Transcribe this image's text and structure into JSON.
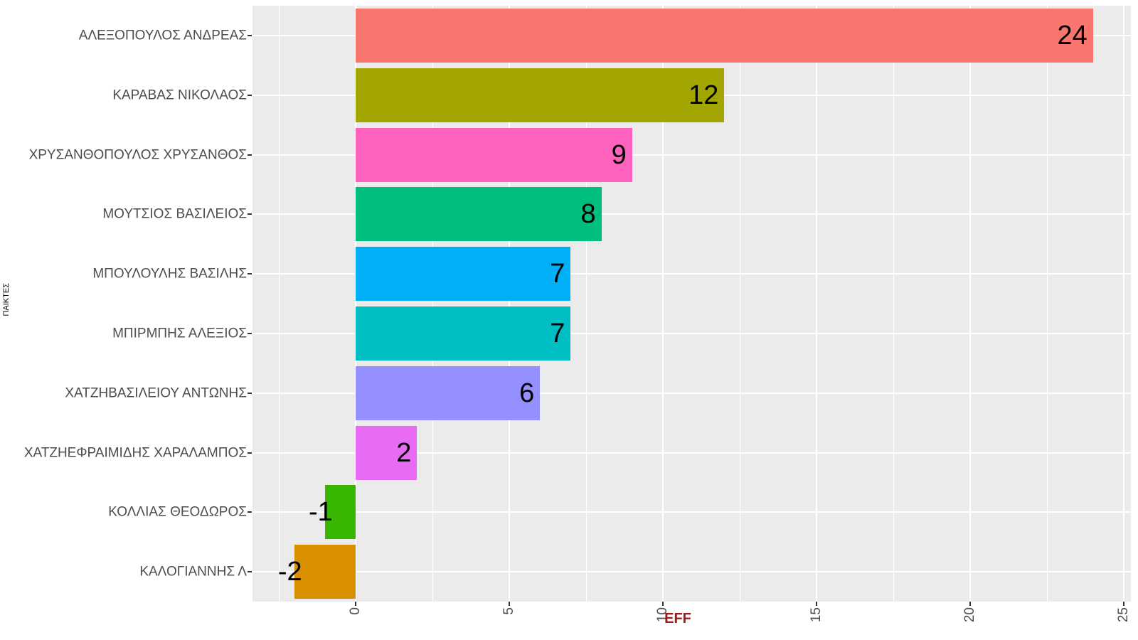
{
  "chart_data": {
    "type": "bar",
    "orientation": "horizontal",
    "title": "",
    "xlabel": "EFF",
    "ylabel": "ΠΑΙΚΤΕΣ",
    "categories": [
      "ΑΛΕΞΟΠΟΥΛΟΣ ΑΝΔΡΕΑΣ",
      "ΚΑΡΑΒΑΣ ΝΙΚΟΛΑΟΣ",
      "ΧΡΥΣΑΝΘΟΠΟΥΛΟΣ ΧΡΥΣΑΝΘΟΣ",
      "ΜΟΥΤΣΙΟΣ ΒΑΣΙΛΕΙΟΣ",
      "ΜΠΟΥΛΟΥΛΗΣ ΒΑΣΙΛΗΣ",
      "ΜΠΙΡΜΠΗΣ ΑΛΕΞΙΟΣ",
      "ΧΑΤΖΗΒΑΣΙΛΕΙΟΥ ΑΝΤΩΝΗΣ",
      "ΧΑΤΖΗΕΦΡΑΙΜΙΔΗΣ ΧΑΡΑΛΑΜΠΟΣ",
      "ΚΟΛΛΙΑΣ ΘΕΟΔΩΡΟΣ",
      "ΚΑΛΟΓΙΑΝΝΗΣ Λ"
    ],
    "values": [
      24,
      12,
      9,
      8,
      7,
      7,
      6,
      2,
      -1,
      -2
    ],
    "value_labels": [
      "24",
      "12",
      "9",
      "8",
      "7",
      "7",
      "6",
      "2",
      "-1",
      "-2"
    ],
    "bar_colors": [
      "#F8766D",
      "#A3A500",
      "#FF62BC",
      "#00BF7D",
      "#00B0F6",
      "#00BFC4",
      "#9590FF",
      "#E76BF3",
      "#39B600",
      "#D89000"
    ],
    "x_tick_labels": [
      "0",
      "5",
      "10",
      "15",
      "20",
      "25"
    ],
    "x_tick_values": [
      0,
      5,
      10,
      15,
      20,
      25
    ],
    "x_minor_tick_values": [
      -2.5,
      2.5,
      7.5,
      12.5,
      17.5,
      22.5
    ],
    "xlim": [
      -3.36,
      25.2
    ],
    "grid": "major and minor vertical white lines, major horizontal white line per category, on gray panel",
    "legend": "none",
    "colors": {
      "panel_bg": "#EBEBEB",
      "gridline": "#FFFFFF",
      "axis_text": "#4D4D4D",
      "tick_mark": "#333333",
      "xlabel_text": "#9E1A1A",
      "value_label_text": "#000000"
    }
  }
}
